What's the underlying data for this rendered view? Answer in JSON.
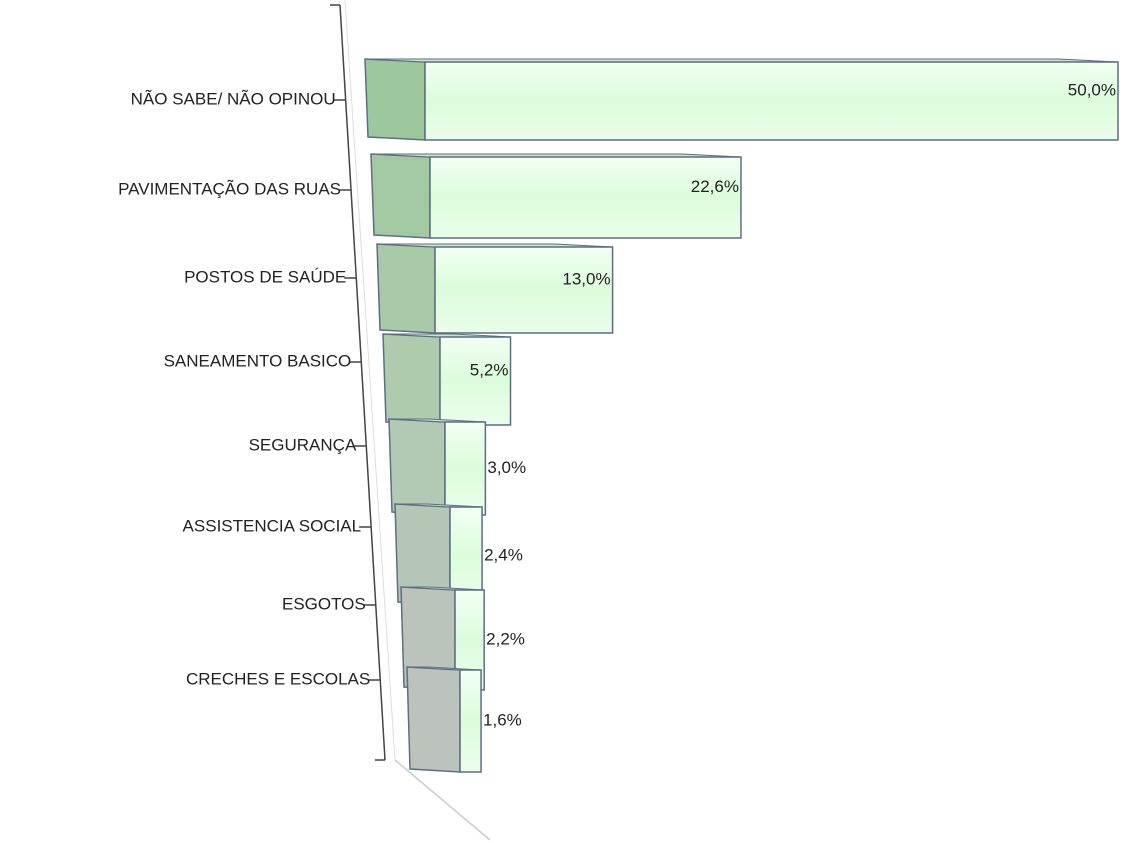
{
  "chart_data": {
    "type": "bar3d_horizontal",
    "categories": [
      "NÃO SABE/ NÃO OPINOU",
      "PAVIMENTAÇÃO DAS RUAS",
      "POSTOS DE SAÚDE",
      "SANEAMENTO BASICO",
      "SEGURANÇA",
      "ASSISTENCIA SOCIAL",
      "ESGOTOS",
      "CRECHES E ESCOLAS"
    ],
    "values": [
      50,
      22.6,
      13,
      5.2,
      3,
      2.4,
      2.2,
      1.6
    ],
    "value_labels": [
      "50,0%",
      "22,6%",
      "13,0%",
      "5,2%",
      "3,0%",
      "2,4%",
      "2,2%",
      "1,6%"
    ],
    "color": "#e2fde2"
  }
}
